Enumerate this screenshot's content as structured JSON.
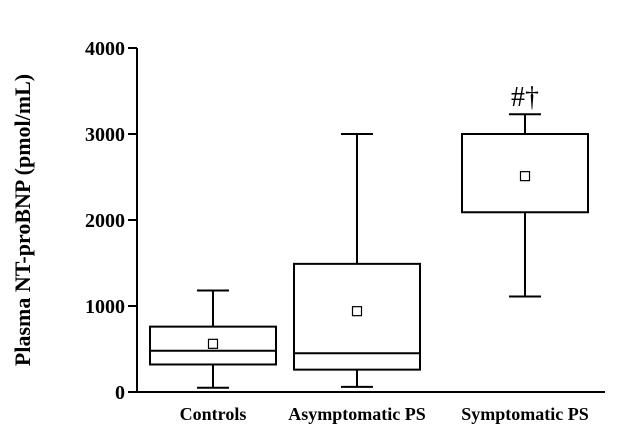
{
  "chart_data": {
    "type": "box",
    "title": "",
    "xlabel": "",
    "ylabel": "Plasma NT-proBNP (pmol/mL)",
    "ylim": [
      0,
      4000
    ],
    "yticks": [
      0,
      1000,
      2000,
      3000,
      4000
    ],
    "ytick_labels": [
      "0",
      "1000",
      "2000",
      "3000",
      "4000"
    ],
    "grid": false,
    "categories": [
      "Controls",
      "Asymptomatic PS",
      "Symptomatic PS"
    ],
    "boxes": [
      {
        "category": "Controls",
        "whisker_low": 50,
        "q1": 320,
        "median": 480,
        "q3": 760,
        "whisker_high": 1180,
        "mean": 560
      },
      {
        "category": "Asymptomatic PS",
        "whisker_low": 60,
        "q1": 260,
        "median": 450,
        "q3": 1490,
        "whisker_high": 3000,
        "mean": 940
      },
      {
        "category": "Symptomatic PS",
        "whisker_low": 1110,
        "q1": 2090,
        "median": 3000,
        "q3": 3000,
        "whisker_high": 3230,
        "mean": 2510
      }
    ],
    "annotations": [
      {
        "category": "Symptomatic PS",
        "text": "#†"
      }
    ]
  }
}
